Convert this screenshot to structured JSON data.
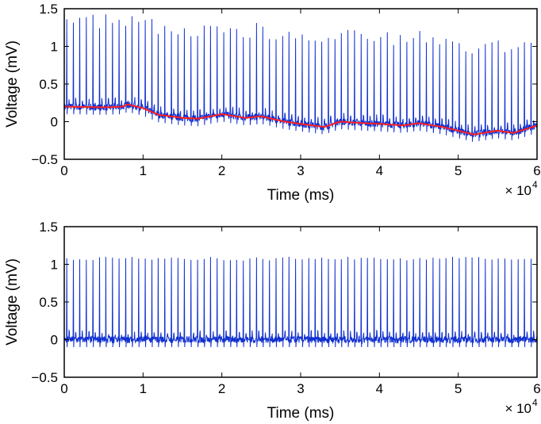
{
  "chart_data": [
    {
      "type": "line",
      "xlabel": "Time (ms)",
      "ylabel": "Voltage (mV)",
      "x_multiplier": "× 10",
      "x_multiplier_exp": "4",
      "xlim": [
        0,
        60000
      ],
      "ylim": [
        -0.5,
        1.5
      ],
      "xticks": [
        "0",
        "1",
        "2",
        "3",
        "4",
        "5",
        "6"
      ],
      "yticks": [
        "1.5",
        "1",
        "0.5",
        "0",
        "−0.5"
      ],
      "grid": false,
      "signal": {
        "color": "#1030d0",
        "beat_interval_ms": 830,
        "spike_peak_mv": 1.05,
        "baseline_noise_mv": 0.15
      },
      "series": [
        {
          "color": "#ff2020",
          "x": [
            0,
            5000,
            7500,
            8000,
            10000,
            12000,
            15000,
            17000,
            20000,
            23000,
            25000,
            28000,
            30000,
            33000,
            35000,
            38000,
            40000,
            43000,
            45000,
            48000,
            50000,
            52000,
            55000,
            57000,
            60000
          ],
          "y": [
            0.2,
            0.19,
            0.2,
            0.23,
            0.18,
            0.09,
            0.05,
            0.04,
            0.1,
            0.05,
            0.07,
            0.0,
            -0.03,
            -0.07,
            0.0,
            -0.02,
            -0.03,
            -0.05,
            -0.02,
            -0.07,
            -0.12,
            -0.17,
            -0.12,
            -0.15,
            -0.05
          ]
        }
      ]
    },
    {
      "type": "line",
      "xlabel": "Time (ms)",
      "ylabel": "Voltage (mV)",
      "x_multiplier": "× 10",
      "x_multiplier_exp": "4",
      "xlim": [
        0,
        60000
      ],
      "ylim": [
        -0.5,
        1.5
      ],
      "xticks": [
        "0",
        "1",
        "2",
        "3",
        "4",
        "5",
        "6"
      ],
      "yticks": [
        "1.5",
        "1",
        "0.5",
        "0",
        "−0.5"
      ],
      "grid": false,
      "signal": {
        "color": "#1030d0",
        "beat_interval_ms": 830,
        "spike_peak_mv": 1.05,
        "baseline_noise_mv": 0.15
      },
      "series": []
    }
  ]
}
